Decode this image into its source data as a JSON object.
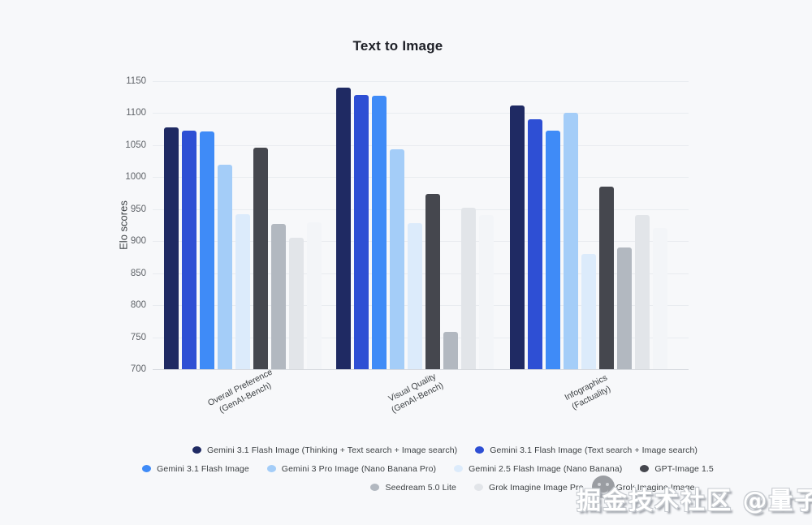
{
  "title": "Text to Image",
  "watermark": {
    "text": "掘金技术社区 @量子位",
    "logo": "juejin-face-logo"
  },
  "chart_data": {
    "type": "bar",
    "title": "Text to Image",
    "xlabel": "",
    "ylabel": "Elo scores",
    "ylim": [
      700,
      1150
    ],
    "yticks": [
      700,
      750,
      800,
      850,
      900,
      950,
      1000,
      1050,
      1100,
      1150
    ],
    "grid": true,
    "legend_position": "bottom",
    "categories": [
      {
        "line1": "Overall Preference",
        "line2": "(GenAI-Bench)"
      },
      {
        "line1": "Visual Quality",
        "line2": "(GenAI-Bench)"
      },
      {
        "line1": "Infographics",
        "line2": "(Factuality)"
      }
    ],
    "series": [
      {
        "name": "Gemini 3.1 Flash Image (Thinking + Text search + Image search)",
        "color": "#1f2a63",
        "values": [
          1078,
          1140,
          1112
        ]
      },
      {
        "name": "Gemini 3.1 Flash Image (Text search + Image search)",
        "color": "#2e4fd4",
        "values": [
          1073,
          1128,
          1090
        ]
      },
      {
        "name": "Gemini 3.1 Flash Image",
        "color": "#3f8bf7",
        "values": [
          1072,
          1127,
          1073
        ]
      },
      {
        "name": "Gemini 3 Pro Image (Nano Banana Pro)",
        "color": "#a4cdf8",
        "values": [
          1020,
          1043,
          1101
        ]
      },
      {
        "name": "Gemini 2.5 Flash Image (Nano Banana)",
        "color": "#dcebfb",
        "values": [
          942,
          928,
          880
        ]
      },
      {
        "name": "GPT-Image 1.5",
        "color": "#45474e",
        "values": [
          1046,
          974,
          985
        ]
      },
      {
        "name": "Seedream 5.0 Lite",
        "color": "#b2b8c0",
        "values": [
          927,
          758,
          890
        ]
      },
      {
        "name": "Grok Imagine Image Pro",
        "color": "#e2e5e9",
        "values": [
          905,
          952,
          941
        ]
      },
      {
        "name": "Grok Imagine Image",
        "color": "#f3f5f8",
        "values": [
          930,
          941,
          920
        ]
      }
    ],
    "legend_rows": [
      [
        0,
        1
      ],
      [
        2,
        3,
        4,
        5
      ],
      [
        6,
        7,
        8
      ]
    ]
  }
}
